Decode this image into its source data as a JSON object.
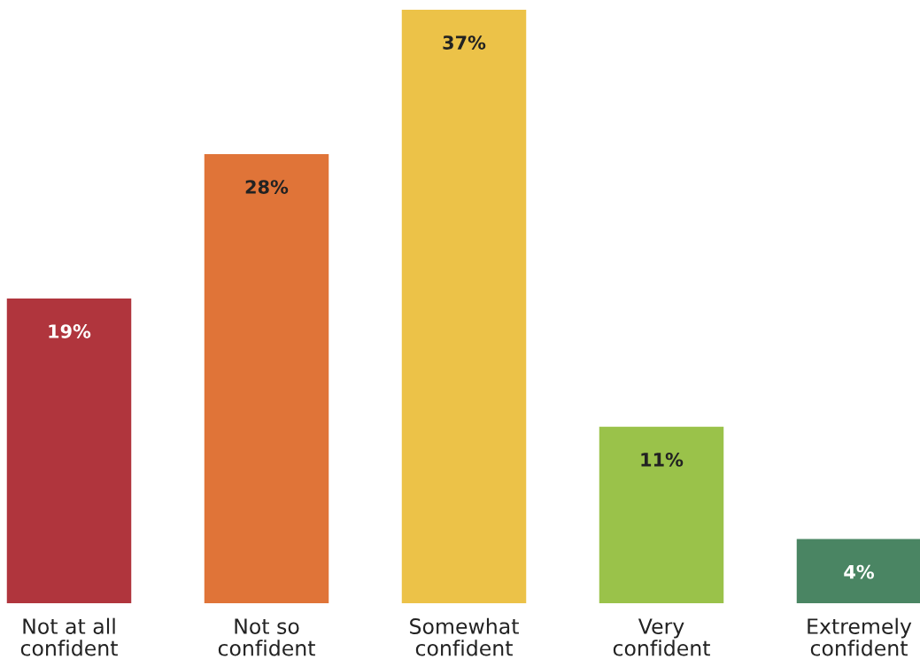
{
  "chart_data": {
    "type": "bar",
    "categories": [
      "Not at all confident",
      "Not so confident",
      "Somewhat confident",
      "Very confident",
      "Extremely confident"
    ],
    "values": [
      19,
      28,
      37,
      11,
      4
    ],
    "value_labels": [
      "19%",
      "28%",
      "37%",
      "11%",
      "4%"
    ],
    "colors": [
      "#b0353d",
      "#e07438",
      "#ecc248",
      "#9ac24a",
      "#4a8563"
    ],
    "grid": false,
    "legend": false
  }
}
